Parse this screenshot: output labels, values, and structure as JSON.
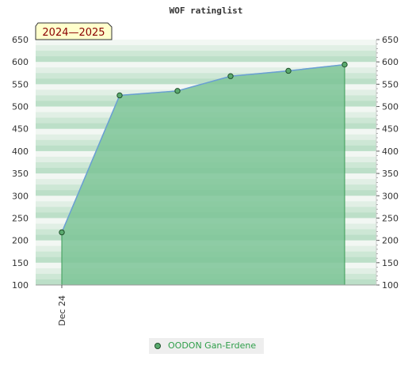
{
  "chart_data": {
    "type": "area",
    "title": "WOF ratinglist",
    "badge": "2024—2025",
    "x_ticks": [
      "Dec 24"
    ],
    "y_ticks": [
      100,
      150,
      200,
      250,
      300,
      350,
      400,
      450,
      500,
      550,
      600,
      650
    ],
    "ylim": [
      100,
      650
    ],
    "grid": "horizontal bands",
    "y_axis_both_sides": true,
    "series": [
      {
        "name": "OODON Gan-Erdene",
        "values": [
          218,
          525,
          535,
          568,
          580,
          594
        ]
      }
    ],
    "legend_position": "bottom",
    "colors": {
      "area": "#7cc496",
      "line": "#6a9fd4",
      "marker": "#5aaa6e",
      "legend_text": "#2e9e49"
    }
  }
}
